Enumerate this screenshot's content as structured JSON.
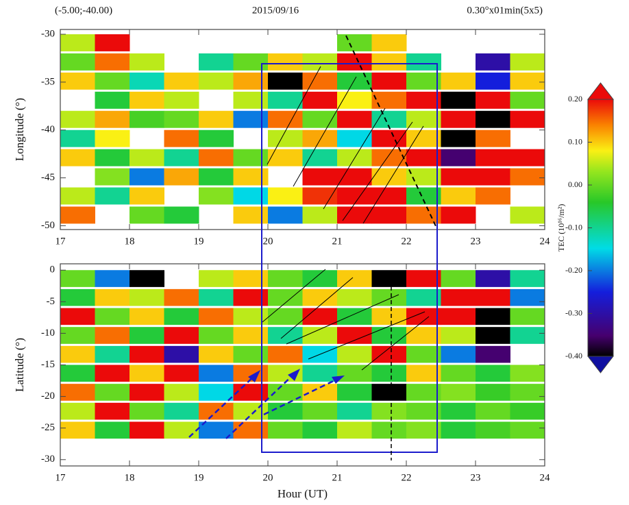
{
  "header": {
    "left": "(-5.00;-40.00)",
    "center": "2015/09/16",
    "right": "0.30°x01min(5x5)"
  },
  "colorbar": {
    "label": "TEC (10¹⁶/m²)",
    "lim": [
      -0.4,
      0.2
    ],
    "ticks": [
      {
        "value": 0.2,
        "label": "0.20"
      },
      {
        "value": 0.1,
        "label": "0.10"
      },
      {
        "value": 0,
        "label": "0.00"
      },
      {
        "value": -0.1,
        "label": "-0.10"
      },
      {
        "value": -0.2,
        "label": "-0.20"
      },
      {
        "value": -0.3,
        "label": "-0.30"
      },
      {
        "value": -0.4,
        "label": "-0.40"
      }
    ]
  },
  "chart_data": [
    {
      "type": "heatmap",
      "ylabel": "Longitude (°)",
      "xlim": [
        17,
        24
      ],
      "xticks": [
        17,
        18,
        19,
        20,
        21,
        22,
        23,
        24
      ],
      "ylim": [
        -50.4,
        -29.5
      ],
      "yticks": [
        -50,
        -45,
        -40,
        -35,
        -30
      ],
      "x_bins": [
        17,
        17.5,
        18,
        18.5,
        19,
        19.5,
        20,
        20.5,
        21,
        21.5,
        22,
        22.5,
        23,
        23.5,
        24
      ],
      "y_bins": [
        -50,
        -48,
        -46,
        -44,
        -42,
        -40,
        -38,
        -36,
        -34,
        -32,
        -30
      ],
      "values": [
        [
          0.15,
          null,
          0.0,
          -0.05,
          null,
          0.1,
          -0.2,
          0.05,
          0.2,
          0.2,
          0.15,
          0.2,
          null,
          0.05
        ],
        [
          0.05,
          -0.1,
          0.1,
          null,
          0.02,
          -0.15,
          0.08,
          0.18,
          0.2,
          0.2,
          -0.05,
          0.1,
          0.15,
          null
        ],
        [
          null,
          0.02,
          -0.2,
          0.12,
          -0.05,
          0.1,
          null,
          0.2,
          0.2,
          0.1,
          0.05,
          0.2,
          0.2,
          0.15
        ],
        [
          0.1,
          -0.05,
          0.05,
          -0.1,
          0.15,
          0.0,
          0.1,
          -0.1,
          0.05,
          0.15,
          0.2,
          -0.35,
          0.2,
          0.2
        ],
        [
          -0.1,
          0.08,
          null,
          0.15,
          -0.05,
          null,
          0.05,
          0.12,
          -0.15,
          0.2,
          0.1,
          -0.4,
          0.15,
          null
        ],
        [
          0.05,
          0.12,
          -0.02,
          0.0,
          0.1,
          -0.2,
          0.15,
          0.0,
          0.2,
          -0.1,
          0.05,
          0.2,
          -0.4,
          0.2
        ],
        [
          null,
          -0.05,
          0.1,
          0.05,
          null,
          0.05,
          -0.1,
          0.2,
          0.08,
          0.15,
          0.2,
          -0.4,
          0.2,
          0.0
        ],
        [
          0.1,
          0.0,
          -0.12,
          0.1,
          0.05,
          0.12,
          -0.4,
          0.15,
          -0.05,
          0.2,
          0.0,
          0.1,
          -0.25,
          0.1
        ],
        [
          0.0,
          0.15,
          0.05,
          null,
          -0.1,
          0.0,
          0.1,
          0.05,
          0.2,
          0.1,
          -0.1,
          null,
          -0.3,
          0.05
        ],
        [
          0.05,
          0.2,
          null,
          null,
          null,
          null,
          null,
          null,
          0.0,
          0.1,
          null,
          null,
          null,
          null
        ]
      ]
    },
    {
      "type": "heatmap",
      "ylabel": "Latitude (°)",
      "xlabel": "Hour (UT)",
      "xlim": [
        17,
        24
      ],
      "xticks": [
        17,
        18,
        19,
        20,
        21,
        22,
        23,
        24
      ],
      "ylim": [
        -31,
        1
      ],
      "yticks": [
        -30,
        -25,
        -20,
        -15,
        -10,
        -5,
        0
      ],
      "x_bins": [
        17,
        17.5,
        18,
        18.5,
        19,
        19.5,
        20,
        20.5,
        21,
        21.5,
        22,
        22.5,
        23,
        23.5,
        24
      ],
      "y_bins": [
        -30,
        -27,
        -24,
        -21,
        -18,
        -15,
        -12,
        -9,
        -6,
        -3,
        0
      ],
      "values": [
        [
          null,
          null,
          null,
          null,
          null,
          null,
          null,
          null,
          null,
          null,
          null,
          null,
          null,
          null
        ],
        [
          0.1,
          -0.05,
          0.2,
          0.05,
          -0.2,
          0.15,
          0.0,
          -0.05,
          0.05,
          0.0,
          0.02,
          -0.05,
          -0.02,
          0.0
        ],
        [
          0.05,
          0.2,
          0.0,
          -0.1,
          0.15,
          0.05,
          -0.05,
          0.0,
          -0.1,
          0.02,
          0.0,
          -0.05,
          0.0,
          -0.03
        ],
        [
          0.15,
          0.0,
          0.2,
          0.05,
          -0.15,
          0.2,
          0.0,
          0.1,
          -0.05,
          -0.4,
          0.0,
          0.02,
          -0.03,
          0.0
        ],
        [
          -0.05,
          0.2,
          0.1,
          0.2,
          -0.2,
          0.15,
          0.05,
          -0.1,
          0.0,
          -0.05,
          0.1,
          0.0,
          -0.05,
          0.02
        ],
        [
          0.1,
          -0.1,
          0.2,
          -0.3,
          0.1,
          0.0,
          0.15,
          -0.15,
          0.05,
          0.2,
          0.0,
          -0.2,
          -0.35,
          null
        ],
        [
          0.0,
          0.15,
          -0.05,
          0.2,
          0.0,
          0.1,
          -0.1,
          0.05,
          0.2,
          -0.05,
          0.1,
          0.05,
          -0.4,
          -0.1
        ],
        [
          0.2,
          0.0,
          0.1,
          -0.05,
          0.15,
          0.05,
          0.0,
          0.2,
          -0.05,
          0.1,
          0.2,
          0.2,
          -0.4,
          0.0
        ],
        [
          -0.05,
          0.1,
          0.05,
          0.15,
          -0.1,
          0.2,
          0.0,
          0.1,
          0.05,
          0.0,
          -0.1,
          0.2,
          0.2,
          -0.2
        ],
        [
          0.0,
          -0.2,
          -0.4,
          null,
          0.05,
          0.1,
          0.0,
          -0.05,
          0.1,
          -0.4,
          0.2,
          0.0,
          -0.3,
          -0.1
        ]
      ]
    }
  ]
}
